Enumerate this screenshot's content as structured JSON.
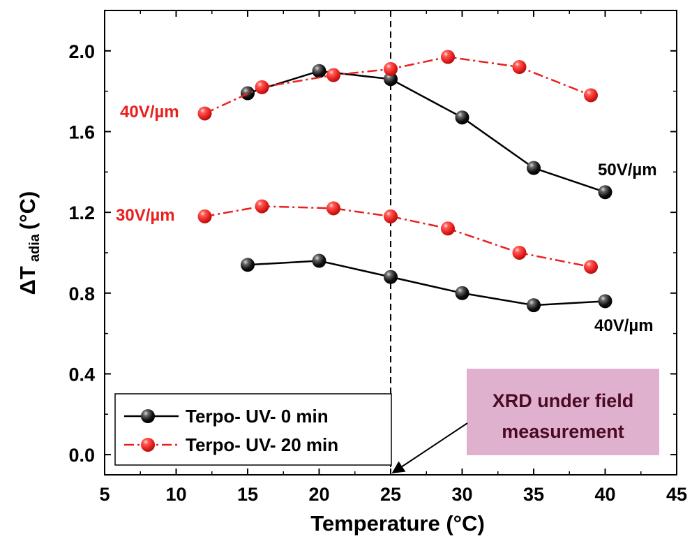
{
  "colors": {
    "black_series": "#000000",
    "red_series": "#e8201e",
    "annotation_box": "#dfb1cf",
    "annotation_text": "#4a0a24"
  },
  "chart_data": {
    "type": "line",
    "xlabel": "Temperature (°C)",
    "ylabel_main": "ΔT",
    "ylabel_sub": "adia",
    "ylabel_unit": "(°C)",
    "xlim": [
      5,
      45
    ],
    "ylim": [
      -0.1,
      2.2
    ],
    "x_ticks": [
      5,
      10,
      15,
      20,
      25,
      30,
      35,
      40,
      45
    ],
    "x_tick_labels": [
      "5",
      "10",
      "15",
      "20",
      "25",
      "30",
      "35",
      "40",
      "45"
    ],
    "y_ticks": [
      0.0,
      0.4,
      0.8,
      1.2,
      1.6,
      2.0
    ],
    "y_tick_labels": [
      "0.0",
      "0.4",
      "0.8",
      "1.2",
      "1.6",
      "2.0"
    ],
    "grid": false,
    "legend_position": "bottom-left",
    "legend": [
      {
        "label": "Terpo- UV- 0 min",
        "style": "solid",
        "color": "#000000"
      },
      {
        "label": "Terpo- UV- 20 min",
        "style": "dashdot",
        "color": "#e8201e"
      }
    ],
    "series": [
      {
        "field": "50V/µm",
        "style": "solid",
        "color": "#000000",
        "x": [
          15,
          20,
          25,
          30,
          35,
          40
        ],
        "y": [
          1.79,
          1.9,
          1.86,
          1.67,
          1.42,
          1.3
        ]
      },
      {
        "field": "40V/µm",
        "style": "solid",
        "color": "#000000",
        "x": [
          15,
          20,
          25,
          30,
          35,
          40
        ],
        "y": [
          0.94,
          0.96,
          0.88,
          0.8,
          0.74,
          0.76
        ]
      },
      {
        "field": "40V/µm",
        "style": "dashdot",
        "color": "#e8201e",
        "x": [
          12,
          16,
          21,
          25,
          29,
          34,
          39
        ],
        "y": [
          1.69,
          1.82,
          1.88,
          1.91,
          1.97,
          1.92,
          1.78
        ]
      },
      {
        "field": "30V/µm",
        "style": "dashdot",
        "color": "#e8201e",
        "x": [
          12,
          16,
          21,
          25,
          29,
          34,
          39
        ],
        "y": [
          1.18,
          1.23,
          1.22,
          1.18,
          1.12,
          1.0,
          0.93
        ]
      }
    ],
    "annotations": [
      {
        "text": "40V/µm",
        "color": "#e8201e",
        "near": "red series 1 start"
      },
      {
        "text": "30V/µm",
        "color": "#e8201e",
        "near": "red series 2 start"
      },
      {
        "text": "50V/µm",
        "color": "#000000",
        "near": "black series 1 end"
      },
      {
        "text": "40V/µm",
        "color": "#000000",
        "near": "black series 2 end"
      }
    ],
    "vertical_line": {
      "x": 25,
      "style": "dashed"
    },
    "callout": {
      "line1": "XRD under field",
      "line2": "measurement",
      "arrow_to_x": 25,
      "arrow_to_y": -0.1
    }
  }
}
